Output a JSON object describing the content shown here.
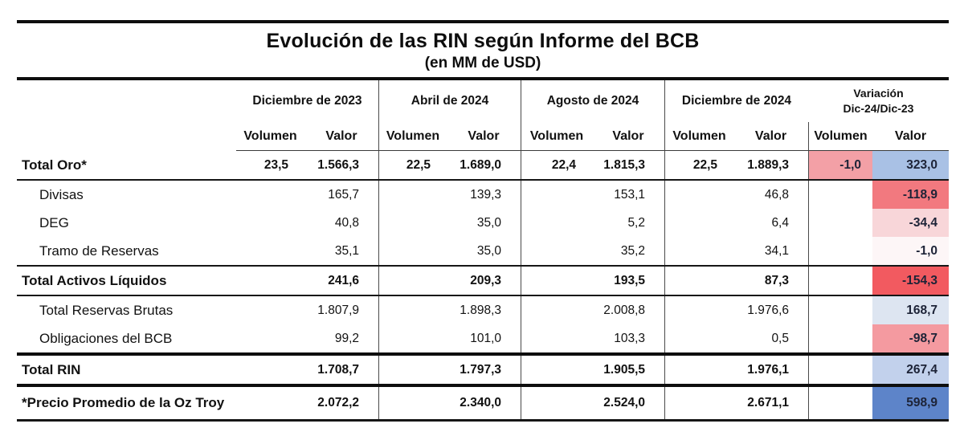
{
  "title": "Evolución de las RIN según Informe del BCB",
  "subtitle": "(en MM de USD)",
  "colors": {
    "variation_text": "#1d2337",
    "red_strong": "#f25a60",
    "red_medium": "#f2797f",
    "pink": "#f49aa0",
    "pink_light": "#f8d6d9",
    "pink_faint": "#fdf6f7",
    "blue_strong": "#5d84c9",
    "blue_light": "#c2d1ec",
    "blue_pale": "#dde5f1",
    "blue_cell": "#a9c1e5"
  },
  "columns": {
    "groups": [
      {
        "label": "Diciembre de 2023"
      },
      {
        "label": "Abril de 2024"
      },
      {
        "label": "Agosto de 2024"
      },
      {
        "label": "Diciembre de 2024"
      },
      {
        "label": "Variación",
        "label2": "Dic-24/Dic-23"
      }
    ],
    "sub": [
      "Volumen",
      "Valor"
    ]
  },
  "table": {
    "rows": [
      {
        "label": "Total Oro*",
        "bold": true,
        "indent": false,
        "border": "medium",
        "cells": [
          "23,5",
          "1.566,3",
          "22,5",
          "1.689,0",
          "22,4",
          "1.815,3",
          "22,5",
          "1.889,3"
        ],
        "var": {
          "vol": "-1,0",
          "val": "323,0",
          "vol_bg": "#f3a0a6",
          "val_bg": "#a9c1e5"
        }
      },
      {
        "label": "Divisas",
        "bold": false,
        "indent": true,
        "border": "",
        "cells": [
          "",
          "165,7",
          "",
          "139,3",
          "",
          "153,1",
          "",
          "46,8"
        ],
        "var": {
          "vol": "",
          "val": "-118,9",
          "vol_bg": null,
          "val_bg": "#f2797f"
        }
      },
      {
        "label": "DEG",
        "bold": false,
        "indent": true,
        "border": "",
        "cells": [
          "",
          "40,8",
          "",
          "35,0",
          "",
          "5,2",
          "",
          "6,4"
        ],
        "var": {
          "vol": "",
          "val": "-34,4",
          "vol_bg": null,
          "val_bg": "#f8d6d9"
        }
      },
      {
        "label": "Tramo de Reservas",
        "bold": false,
        "indent": true,
        "border": "medium",
        "cells": [
          "",
          "35,1",
          "",
          "35,0",
          "",
          "35,2",
          "",
          "34,1"
        ],
        "var": {
          "vol": "",
          "val": "-1,0",
          "vol_bg": null,
          "val_bg": "#fdf6f7"
        }
      },
      {
        "label": "Total Activos Líquidos",
        "bold": true,
        "indent": false,
        "border": "medium",
        "cells": [
          "",
          "241,6",
          "",
          "209,3",
          "",
          "193,5",
          "",
          "87,3"
        ],
        "var": {
          "vol": "",
          "val": "-154,3",
          "vol_bg": null,
          "val_bg": "#f25a60"
        }
      },
      {
        "label": "Total Reservas Brutas",
        "bold": false,
        "indent": true,
        "border": "",
        "cells": [
          "",
          "1.807,9",
          "",
          "1.898,3",
          "",
          "2.008,8",
          "",
          "1.976,6"
        ],
        "var": {
          "vol": "",
          "val": "168,7",
          "vol_bg": null,
          "val_bg": "#dde5f1"
        }
      },
      {
        "label": "Obligaciones del BCB",
        "bold": false,
        "indent": true,
        "border": "heavy",
        "cells": [
          "",
          "99,2",
          "",
          "101,0",
          "",
          "103,3",
          "",
          "0,5"
        ],
        "var": {
          "vol": "",
          "val": "-98,7",
          "vol_bg": null,
          "val_bg": "#f49aa0"
        }
      },
      {
        "label": "Total RIN",
        "bold": true,
        "indent": false,
        "border": "heavy",
        "cells": [
          "",
          "1.708,7",
          "",
          "1.797,3",
          "",
          "1.905,5",
          "",
          "1.976,1"
        ],
        "var": {
          "vol": "",
          "val": "267,4",
          "vol_bg": null,
          "val_bg": "#c2d1ec"
        }
      },
      {
        "label": "*Precio Promedio de la Oz Troy",
        "bold": true,
        "indent": false,
        "border": "end",
        "last": true,
        "cells": [
          "",
          "2.072,2",
          "",
          "2.340,0",
          "",
          "2.524,0",
          "",
          "2.671,1"
        ],
        "var": {
          "vol": "",
          "val": "598,9",
          "vol_bg": null,
          "val_bg": "#5d84c9"
        }
      }
    ]
  },
  "chart_data": {
    "type": "table",
    "title": "Evolución de las RIN según Informe del BCB",
    "subtitle": "(en MM de USD)",
    "column_groups": [
      "Diciembre de 2023",
      "Abril de 2024",
      "Agosto de 2024",
      "Diciembre de 2024",
      "Variación Dic-24/Dic-23"
    ],
    "subcolumns": [
      "Volumen",
      "Valor"
    ],
    "rows": [
      {
        "label": "Total Oro*",
        "dic23": [
          23.5,
          1566.3
        ],
        "abr24": [
          22.5,
          1689.0
        ],
        "ago24": [
          22.4,
          1815.3
        ],
        "dic24": [
          22.5,
          1889.3
        ],
        "variacion": [
          -1.0,
          323.0
        ]
      },
      {
        "label": "Divisas",
        "dic23": [
          null,
          165.7
        ],
        "abr24": [
          null,
          139.3
        ],
        "ago24": [
          null,
          153.1
        ],
        "dic24": [
          null,
          46.8
        ],
        "variacion": [
          null,
          -118.9
        ]
      },
      {
        "label": "DEG",
        "dic23": [
          null,
          40.8
        ],
        "abr24": [
          null,
          35.0
        ],
        "ago24": [
          null,
          5.2
        ],
        "dic24": [
          null,
          6.4
        ],
        "variacion": [
          null,
          -34.4
        ]
      },
      {
        "label": "Tramo de Reservas",
        "dic23": [
          null,
          35.1
        ],
        "abr24": [
          null,
          35.0
        ],
        "ago24": [
          null,
          35.2
        ],
        "dic24": [
          null,
          34.1
        ],
        "variacion": [
          null,
          -1.0
        ]
      },
      {
        "label": "Total Activos Líquidos",
        "dic23": [
          null,
          241.6
        ],
        "abr24": [
          null,
          209.3
        ],
        "ago24": [
          null,
          193.5
        ],
        "dic24": [
          null,
          87.3
        ],
        "variacion": [
          null,
          -154.3
        ]
      },
      {
        "label": "Total Reservas Brutas",
        "dic23": [
          null,
          1807.9
        ],
        "abr24": [
          null,
          1898.3
        ],
        "ago24": [
          null,
          2008.8
        ],
        "dic24": [
          null,
          1976.6
        ],
        "variacion": [
          null,
          168.7
        ]
      },
      {
        "label": "Obligaciones del BCB",
        "dic23": [
          null,
          99.2
        ],
        "abr24": [
          null,
          101.0
        ],
        "ago24": [
          null,
          103.3
        ],
        "dic24": [
          null,
          0.5
        ],
        "variacion": [
          null,
          -98.7
        ]
      },
      {
        "label": "Total RIN",
        "dic23": [
          null,
          1708.7
        ],
        "abr24": [
          null,
          1797.3
        ],
        "ago24": [
          null,
          1905.5
        ],
        "dic24": [
          null,
          1976.1
        ],
        "variacion": [
          null,
          267.4
        ]
      },
      {
        "label": "*Precio Promedio de la Oz Troy",
        "dic23": [
          null,
          2072.2
        ],
        "abr24": [
          null,
          2340.0
        ],
        "ago24": [
          null,
          2524.0
        ],
        "dic24": [
          null,
          2671.1
        ],
        "variacion": [
          null,
          598.9
        ]
      }
    ]
  }
}
